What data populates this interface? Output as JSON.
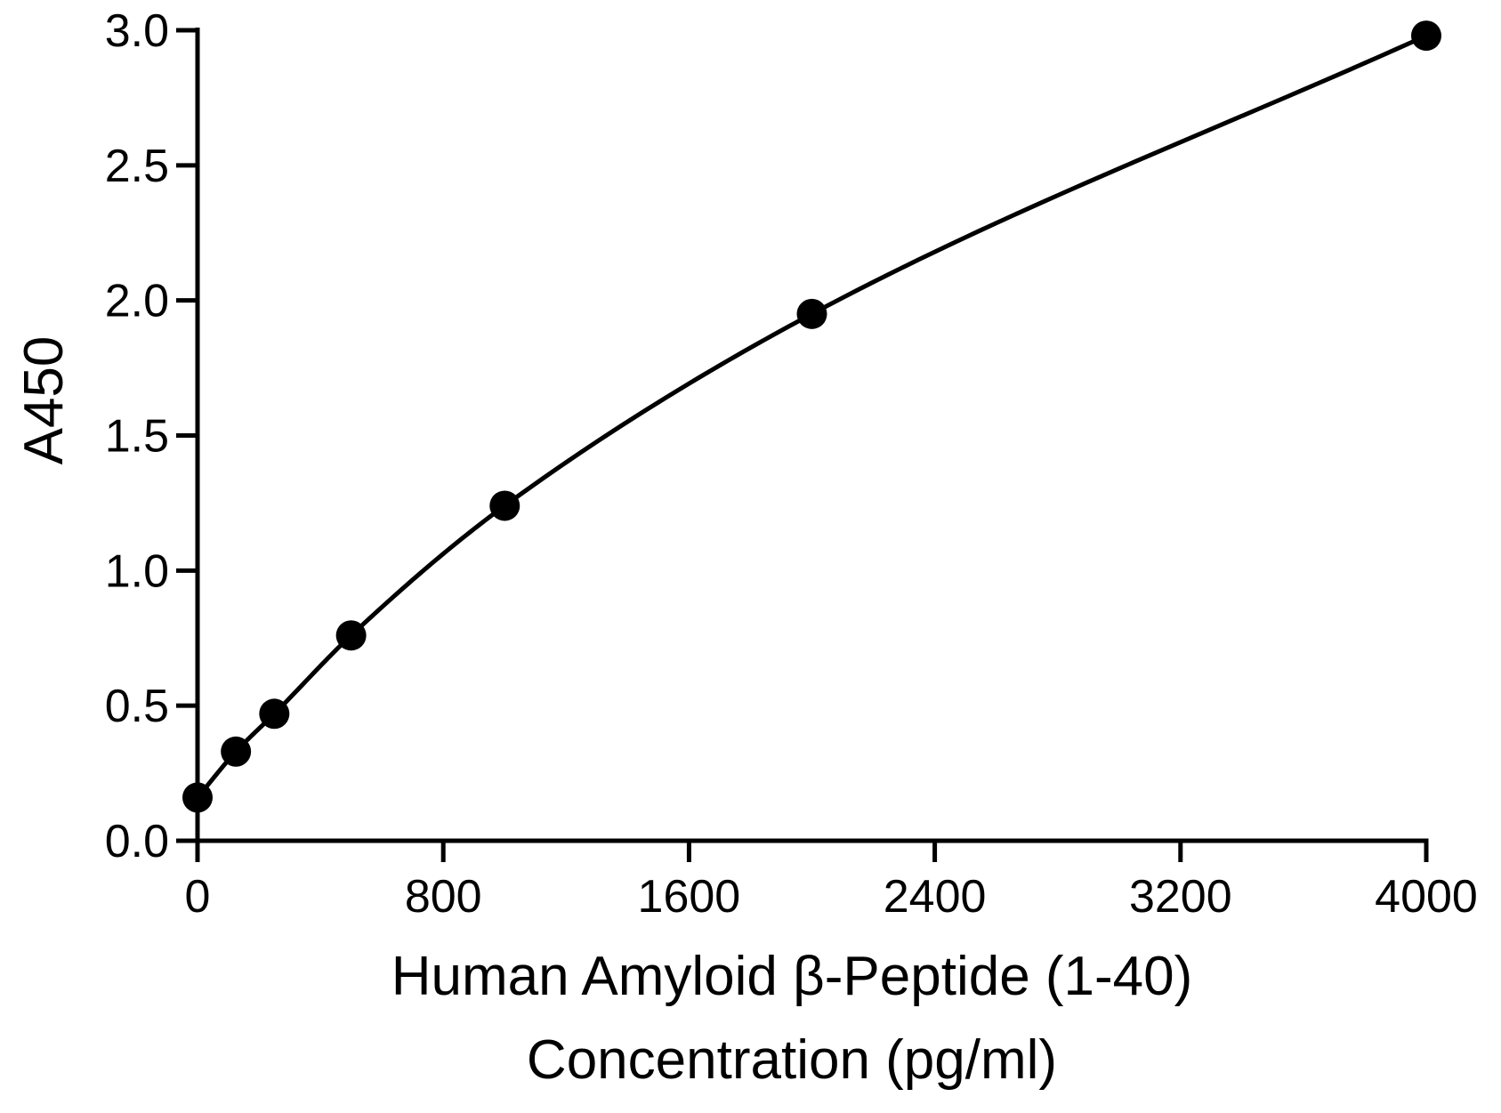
{
  "chart_data": {
    "type": "scatter",
    "xlabel_lines": [
      "Human Amyloid β-Peptide (1-40)",
      "Concentration (pg/ml)"
    ],
    "ylabel": "A450",
    "xlim": [
      0,
      4000
    ],
    "ylim": [
      0,
      3.0
    ],
    "x_ticks": [
      0,
      800,
      1600,
      2400,
      3200,
      4000
    ],
    "y_ticks": [
      0.0,
      0.5,
      1.0,
      1.5,
      2.0,
      2.5,
      3.0
    ],
    "x_tick_labels": [
      "0",
      "800",
      "1600",
      "2400",
      "3200",
      "4000"
    ],
    "y_tick_labels": [
      "0.0",
      "0.5",
      "1.0",
      "1.5",
      "2.0",
      "2.5",
      "3.0"
    ],
    "grid": false,
    "legend": "none",
    "series": [
      {
        "points": {
          "x": [
            0,
            125,
            250,
            500,
            1000,
            2000,
            4000
          ],
          "y": [
            0.16,
            0.33,
            0.47,
            0.76,
            1.24,
            1.95,
            2.98
          ]
        },
        "fit_curve": true,
        "color": "#000000"
      }
    ]
  }
}
